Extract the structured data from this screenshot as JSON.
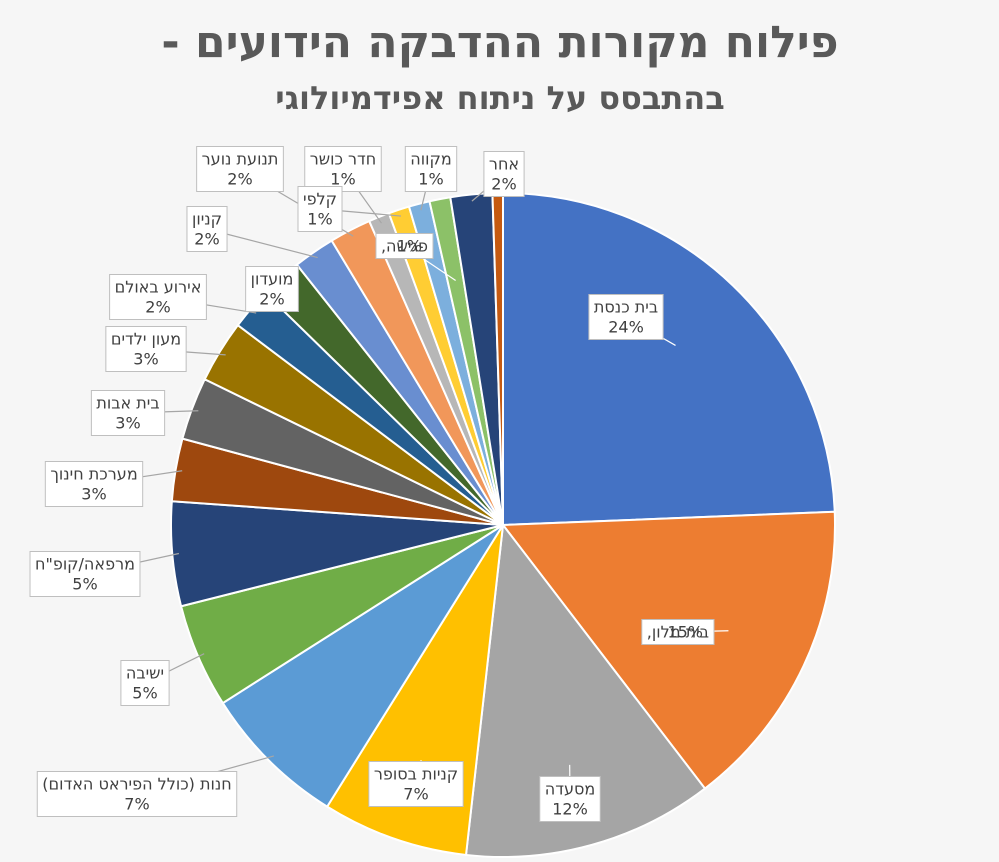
{
  "chart_data": {
    "type": "pie",
    "title": "פילוח מקורות ההדבקה הידועים -",
    "subtitle": "בהתבסס על ניתוח אפידמיולוגי",
    "categories": [
      "בית כנסת",
      "בית מלון,",
      "מסעדה",
      "קניות בסופר",
      "חנות (כולל הפיראט האדום)",
      "ישיבה",
      "מרפאה/קופ\"ח",
      "מערכת חינוך",
      "בית אבות",
      "מעון ילדים",
      "אירוע באולם",
      "מועדון",
      "קניון",
      "תנועת נוער",
      "חדר כושר",
      "קלפי",
      "מקווה",
      "פגישה,",
      "אחר",
      null
    ],
    "values": [
      24,
      15,
      12,
      7,
      7,
      5,
      5,
      3,
      3,
      3,
      2,
      2,
      2,
      2,
      1,
      1,
      1,
      1,
      2,
      0.5
    ],
    "value_labels": [
      "24%",
      "15%",
      "12%",
      "7%",
      "7%",
      "5%",
      "5%",
      "3%",
      "3%",
      "3%",
      "2%",
      "2%",
      "2%",
      "2%",
      "1%",
      "1%",
      "1%",
      "1%",
      "2%",
      null
    ],
    "colors": [
      "#4472c4",
      "#ed7d31",
      "#a5a5a5",
      "#ffc000",
      "#5b9bd5",
      "#70ad47",
      "#264478",
      "#9e480e",
      "#636363",
      "#997300",
      "#255e91",
      "#43682b",
      "#698ed0",
      "#f1975a",
      "#b7b7b7",
      "#ffcd33",
      "#7cafdd",
      "#8cc168",
      "#264478",
      "#c55a11"
    ]
  }
}
